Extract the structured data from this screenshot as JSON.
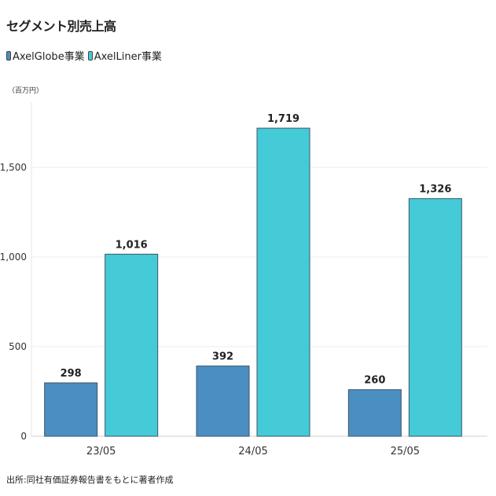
{
  "chart_data": {
    "type": "bar",
    "title": "セグメント別売上高",
    "unit_label": "（百万円）",
    "categories": [
      "23/05",
      "24/05",
      "25/05"
    ],
    "series": [
      {
        "name": "AxelGlobe事業",
        "values": [
          298,
          392,
          260
        ],
        "value_labels": [
          "298",
          "392",
          "260"
        ],
        "color": "#4a8ec2"
      },
      {
        "name": "AxelLiner事業",
        "values": [
          1016,
          1719,
          1326
        ],
        "value_labels": [
          "1,016",
          "1,719",
          "1,326"
        ],
        "color": "#45cad8"
      }
    ],
    "yticks": [
      0,
      500,
      1000,
      1500
    ],
    "ytick_labels": [
      "0",
      "500",
      "1,000",
      "1,500"
    ],
    "ylim": [
      0,
      1850
    ],
    "grid": true,
    "legend_position": "top-left"
  },
  "source_note": "出所:同社有価証券報告書をもとに著者作成"
}
